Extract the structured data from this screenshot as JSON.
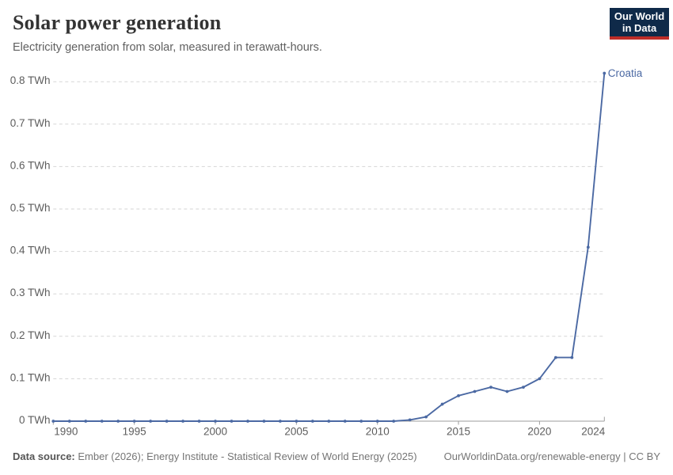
{
  "header": {
    "title": "Solar power generation",
    "subtitle": "Electricity generation from solar, measured in terawatt-hours."
  },
  "logo": {
    "line1": "Our World",
    "line2": "in Data",
    "bg_color": "#0f2a49",
    "accent_color": "#be2d28"
  },
  "chart_data": {
    "type": "line",
    "title": "Solar power generation",
    "unit": "TWh",
    "xlabel": "",
    "ylabel": "",
    "xlim": [
      1990,
      2024
    ],
    "ylim": [
      0,
      0.82
    ],
    "grid": "horizontal-dashed",
    "legend_position": "end-of-line-label",
    "x": [
      1990,
      1991,
      1992,
      1993,
      1994,
      1995,
      1996,
      1997,
      1998,
      1999,
      2000,
      2001,
      2002,
      2003,
      2004,
      2005,
      2006,
      2007,
      2008,
      2009,
      2010,
      2011,
      2012,
      2013,
      2014,
      2015,
      2016,
      2017,
      2018,
      2019,
      2020,
      2021,
      2022,
      2023,
      2024
    ],
    "series": [
      {
        "name": "Croatia",
        "color": "#4b69a3",
        "values": [
          0,
          0,
          0,
          0,
          0,
          0,
          0,
          0,
          0,
          0,
          0,
          0,
          0,
          0,
          0,
          0,
          0,
          0,
          0,
          0,
          0,
          0,
          0.003,
          0.01,
          0.04,
          0.06,
          0.07,
          0.08,
          0.07,
          0.08,
          0.1,
          0.15,
          0.15,
          0.41,
          0.82
        ]
      }
    ],
    "y_ticks": [
      {
        "value": 0.0,
        "label": "0 TWh"
      },
      {
        "value": 0.1,
        "label": "0.1 TWh"
      },
      {
        "value": 0.2,
        "label": "0.2 TWh"
      },
      {
        "value": 0.3,
        "label": "0.3 TWh"
      },
      {
        "value": 0.4,
        "label": "0.4 TWh"
      },
      {
        "value": 0.5,
        "label": "0.5 TWh"
      },
      {
        "value": 0.6,
        "label": "0.6 TWh"
      },
      {
        "value": 0.7,
        "label": "0.7 TWh"
      },
      {
        "value": 0.8,
        "label": "0.8 TWh"
      }
    ],
    "x_ticks": [
      {
        "year": 1990,
        "label": "1990"
      },
      {
        "year": 1995,
        "label": "1995"
      },
      {
        "year": 2000,
        "label": "2000"
      },
      {
        "year": 2005,
        "label": "2005"
      },
      {
        "year": 2010,
        "label": "2010"
      },
      {
        "year": 2015,
        "label": "2015"
      },
      {
        "year": 2020,
        "label": "2020"
      },
      {
        "year": 2024,
        "label": "2024"
      }
    ],
    "colors": {
      "gridline": "#d5d5d5",
      "axis": "#9e9e9e",
      "tick_label": "#5d5d5d"
    }
  },
  "footer": {
    "source_bold": "Data source:",
    "source_rest": " Ember (2026); Energy Institute - Statistical Review of World Energy (2025)",
    "credit": "OurWorldinData.org/renewable-energy | CC BY"
  }
}
